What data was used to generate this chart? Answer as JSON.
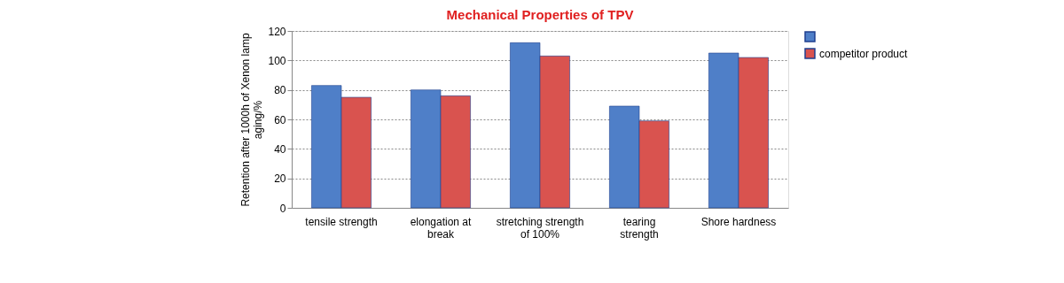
{
  "chart_data": {
    "type": "bar",
    "title": "Mechanical Properties of TPV",
    "ylabel": "Retention after 1000h of Xenon lamp\naging/%",
    "categories": [
      "tensile   strength",
      "elongation at\nbreak",
      "stretching strength\nof 100%",
      "tearing\nstrength",
      "Shore hardness"
    ],
    "series": [
      {
        "color": "#4f7fc8",
        "values": [
          83,
          80,
          112,
          69,
          105
        ]
      },
      {
        "name": "competitor product",
        "color": "#d9534f",
        "values": [
          75,
          76,
          103,
          59,
          102
        ]
      }
    ],
    "ylim": [
      0,
      120
    ],
    "yticks": [
      0,
      20,
      40,
      60,
      80,
      100,
      120
    ],
    "grid": "y",
    "legend": "right"
  }
}
